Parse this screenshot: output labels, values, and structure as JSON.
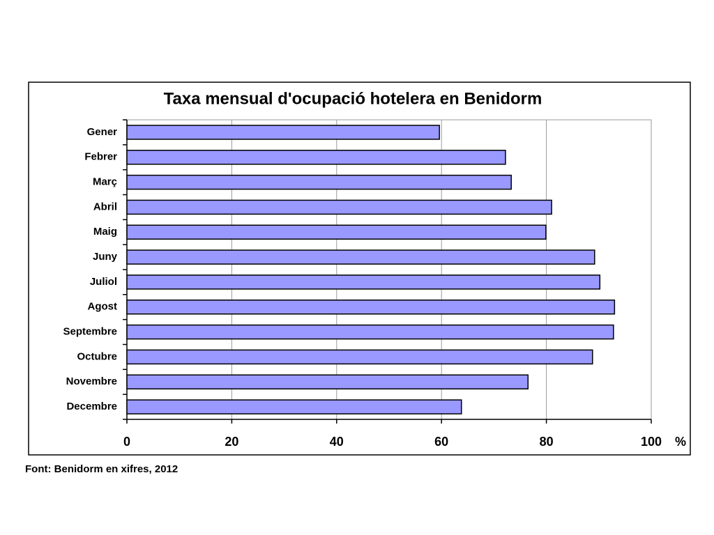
{
  "chart_data": {
    "type": "bar",
    "orientation": "horizontal",
    "title": "Taxa mensual d'ocupació hotelera en Benidorm",
    "x_label": "%",
    "source": "Font: Benidorm en xifres, 2012",
    "categories": [
      "Gener",
      "Febrer",
      "Març",
      "Abril",
      "Maig",
      "Juny",
      "Juliol",
      "Agost",
      "Septembre",
      "Octubre",
      "Novembre",
      "Decembre"
    ],
    "values": [
      59.6,
      72.2,
      73.3,
      81.0,
      79.9,
      89.2,
      90.2,
      93.0,
      92.8,
      88.8,
      76.5,
      63.8
    ],
    "color": "#9999ff",
    "xlim": [
      0,
      100
    ],
    "xticks": [
      0,
      20,
      40,
      60,
      80,
      100
    ],
    "grid": true
  }
}
